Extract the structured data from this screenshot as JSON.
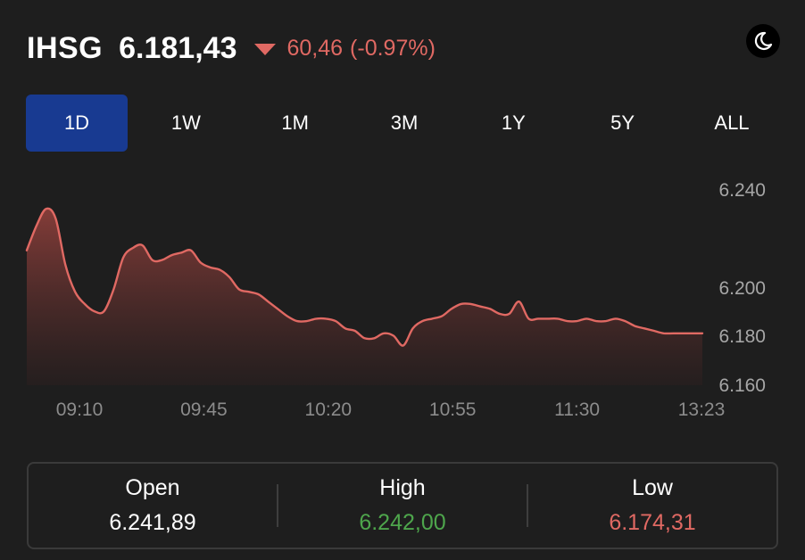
{
  "header": {
    "ticker": "IHSG",
    "price": "6.181,43",
    "change": "60,46",
    "change_pct": "(-0.97%)",
    "direction": "down",
    "down_color": "#e06963",
    "theme_icon": "moon-icon"
  },
  "tabs": [
    {
      "label": "1D",
      "active": true
    },
    {
      "label": "1W",
      "active": false
    },
    {
      "label": "1M",
      "active": false
    },
    {
      "label": "3M",
      "active": false
    },
    {
      "label": "1Y",
      "active": false
    },
    {
      "label": "5Y",
      "active": false
    },
    {
      "label": "ALL",
      "active": false
    }
  ],
  "chart_data": {
    "type": "area",
    "x_tick_labels": [
      "09:10",
      "09:45",
      "10:20",
      "10:55",
      "11:30",
      "13:23"
    ],
    "y_tick_labels": [
      "6.240",
      "6.200",
      "6.180",
      "6.160"
    ],
    "y_ticks": [
      6240,
      6200,
      6180,
      6160
    ],
    "ylim": [
      6160,
      6245
    ],
    "grid": false,
    "line_color": "#e06963",
    "series": [
      {
        "values": [
          6216,
          6226,
          6233,
          6229,
          6210,
          6199,
          6194,
          6191,
          6191,
          6200,
          6213,
          6217,
          6218,
          6212,
          6212,
          6214,
          6215,
          6216,
          6211,
          6209,
          6208,
          6205,
          6200,
          6199,
          6198,
          6195,
          6192,
          6189,
          6187,
          6187,
          6188,
          6188,
          6187,
          6184,
          6183,
          6180,
          6180,
          6182,
          6181,
          6177,
          6184,
          6187,
          6188,
          6189,
          6192,
          6194,
          6194,
          6193,
          6192,
          6190,
          6190,
          6195,
          6188,
          6188,
          6188,
          6188,
          6187,
          6187,
          6188,
          6187,
          6187,
          6188,
          6187,
          6185,
          6184,
          6183,
          6182,
          6182,
          6182,
          6182,
          6182
        ]
      }
    ]
  },
  "stats": {
    "open_label": "Open",
    "open_value": "6.241,89",
    "high_label": "High",
    "high_value": "6.242,00",
    "high_color": "#4ea64c",
    "low_label": "Low",
    "low_value": "6.174,31",
    "low_color": "#e06963"
  }
}
